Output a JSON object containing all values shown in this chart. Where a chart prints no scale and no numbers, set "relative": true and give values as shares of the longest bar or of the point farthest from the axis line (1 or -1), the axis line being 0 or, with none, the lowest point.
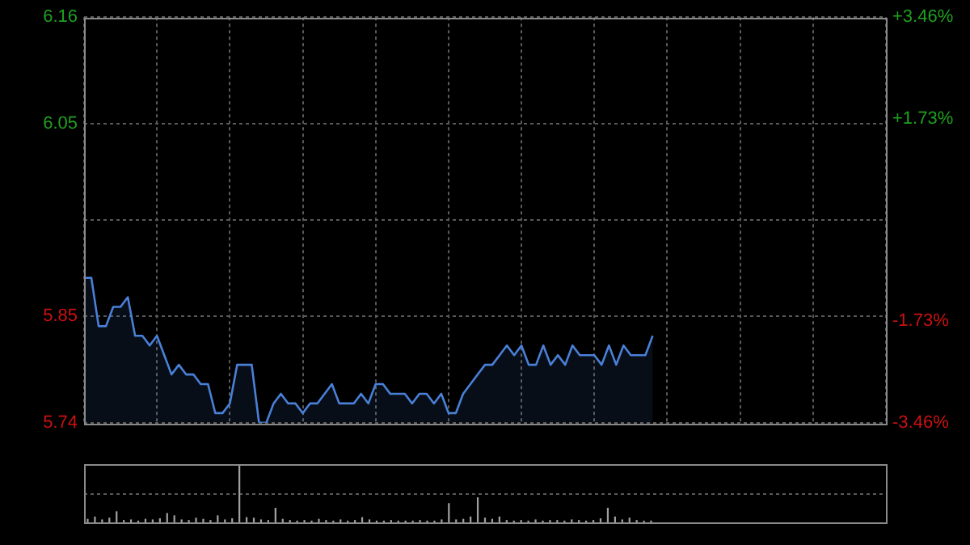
{
  "chart_data": [
    {
      "type": "area",
      "categories": [
        null,
        null,
        null,
        null,
        null,
        null,
        null,
        null,
        null,
        null,
        null,
        null,
        null,
        null,
        null,
        null,
        null,
        null,
        null,
        null,
        null,
        null,
        null,
        null,
        null,
        null,
        null,
        null,
        null,
        null,
        null,
        null,
        null,
        null,
        null,
        null,
        null,
        null,
        null,
        null,
        null,
        null,
        null,
        null,
        null,
        null,
        null,
        null,
        null,
        null,
        null,
        null,
        null,
        null,
        null,
        null,
        null,
        null,
        null,
        null,
        null,
        null,
        null,
        null,
        null,
        null,
        null,
        null,
        null,
        null,
        null,
        null,
        null,
        null,
        null,
        null,
        null,
        null,
        null,
        null,
        null,
        null,
        null,
        null,
        null,
        null,
        null,
        null,
        null,
        null,
        null,
        null,
        null,
        null,
        null,
        null,
        null,
        null,
        null,
        null,
        null,
        null,
        null,
        null,
        null,
        null,
        null,
        null,
        null,
        null,
        null
      ],
      "series": [
        {
          "color": "#4a80d8",
          "values": [
            5.89,
            5.89,
            5.84,
            5.84,
            5.86,
            5.86,
            5.87,
            5.83,
            5.83,
            5.82,
            5.83,
            5.81,
            5.79,
            5.8,
            5.79,
            5.79,
            5.78,
            5.78,
            5.75,
            5.75,
            5.76,
            5.8,
            5.8,
            5.8,
            5.74,
            5.74,
            5.76,
            5.77,
            5.76,
            5.76,
            5.75,
            5.76,
            5.76,
            5.77,
            5.78,
            5.76,
            5.76,
            5.76,
            5.77,
            5.76,
            5.78,
            5.78,
            5.77,
            5.77,
            5.77,
            5.76,
            5.77,
            5.77,
            5.76,
            5.77,
            5.75,
            5.75,
            5.77,
            5.78,
            5.79,
            5.8,
            5.8,
            5.81,
            5.82,
            5.81,
            5.82,
            5.8,
            5.8,
            5.82,
            5.8,
            5.81,
            5.8,
            5.82,
            5.81,
            5.81,
            5.81,
            5.8,
            5.82,
            5.8,
            5.82,
            5.81,
            5.81,
            5.81,
            5.83,
            null,
            null,
            null,
            null,
            null,
            null,
            null,
            null,
            null,
            null,
            null,
            null,
            null,
            null,
            null,
            null,
            null,
            null,
            null,
            null,
            null,
            null,
            null,
            null,
            null,
            null,
            null,
            null,
            null,
            null,
            null,
            null
          ]
        }
      ],
      "ylim": [
        5.74,
        6.16
      ],
      "yticks": [
        5.74,
        5.85,
        {
          "value": 5.95,
          "label": null
        },
        6.05,
        6.16
      ],
      "y2lim": [
        -3.46,
        3.46
      ],
      "y2ticks": [
        {
          "value": -3.46,
          "label": "-3.46%"
        },
        {
          "value": -1.73,
          "label": "-1.73%"
        },
        {
          "value": 1.73,
          "label": "+1.73%"
        },
        {
          "value": 3.46,
          "label": "+3.46%"
        }
      ],
      "grid": true,
      "tick_labels": "y",
      "legend": false
    },
    {
      "type": "bar",
      "relative": true,
      "color": "#a0a0a0",
      "tick_labels": false,
      "legend": false,
      "ref_lines": [
        {
          "axis": "y",
          "value": 0.5,
          "color": "#5a5a5a",
          "line_style": "dotted"
        }
      ],
      "categories": [
        null,
        null,
        null,
        null,
        null,
        null,
        null,
        null,
        null,
        null,
        null,
        null,
        null,
        null,
        null,
        null,
        null,
        null,
        null,
        null,
        null,
        null,
        null,
        null,
        null,
        null,
        null,
        null,
        null,
        null,
        null,
        null,
        null,
        null,
        null,
        null,
        null,
        null,
        null,
        null,
        null,
        null,
        null,
        null,
        null,
        null,
        null,
        null,
        null,
        null,
        null,
        null,
        null,
        null,
        null,
        null,
        null,
        null,
        null,
        null,
        null,
        null,
        null,
        null,
        null,
        null,
        null,
        null,
        null,
        null,
        null,
        null,
        null,
        null,
        null,
        null,
        null,
        null,
        null,
        null,
        null,
        null,
        null,
        null,
        null,
        null,
        null,
        null,
        null,
        null,
        null,
        null,
        null,
        null,
        null,
        null,
        null,
        null,
        null,
        null,
        null,
        null,
        null,
        null,
        null,
        null,
        null,
        null,
        null,
        null,
        null
      ],
      "values": [
        0.06,
        0.1,
        0.05,
        0.08,
        0.19,
        0.04,
        0.05,
        0.03,
        0.06,
        0.05,
        0.07,
        0.16,
        0.12,
        0.05,
        0.04,
        0.08,
        0.06,
        0.04,
        0.12,
        0.05,
        0.07,
        1,
        0.09,
        0.08,
        0.05,
        0.04,
        0.25,
        0.06,
        0.04,
        0.03,
        0.04,
        0.03,
        0.06,
        0.04,
        0.03,
        0.05,
        0.03,
        0.04,
        0.09,
        0.05,
        0.03,
        0.03,
        0.04,
        0.03,
        0.03,
        0.03,
        0.04,
        0.03,
        0.03,
        0.05,
        0.33,
        0.05,
        0.06,
        0.1,
        0.43,
        0.08,
        0.06,
        0.1,
        0.04,
        0.03,
        0.04,
        0.03,
        0.05,
        0.03,
        0.04,
        0.04,
        0.03,
        0.05,
        0.04,
        0.03,
        0.04,
        0.07,
        0.25,
        0.1,
        0.05,
        0.08,
        0.04,
        0.03,
        0.03,
        null,
        null,
        null,
        null,
        null,
        null,
        null,
        null,
        null,
        null,
        null,
        null,
        null,
        null,
        null,
        null,
        null,
        null,
        null,
        null,
        null,
        null,
        null,
        null,
        null,
        null,
        null,
        null,
        null,
        null,
        null,
        null
      ]
    }
  ]
}
